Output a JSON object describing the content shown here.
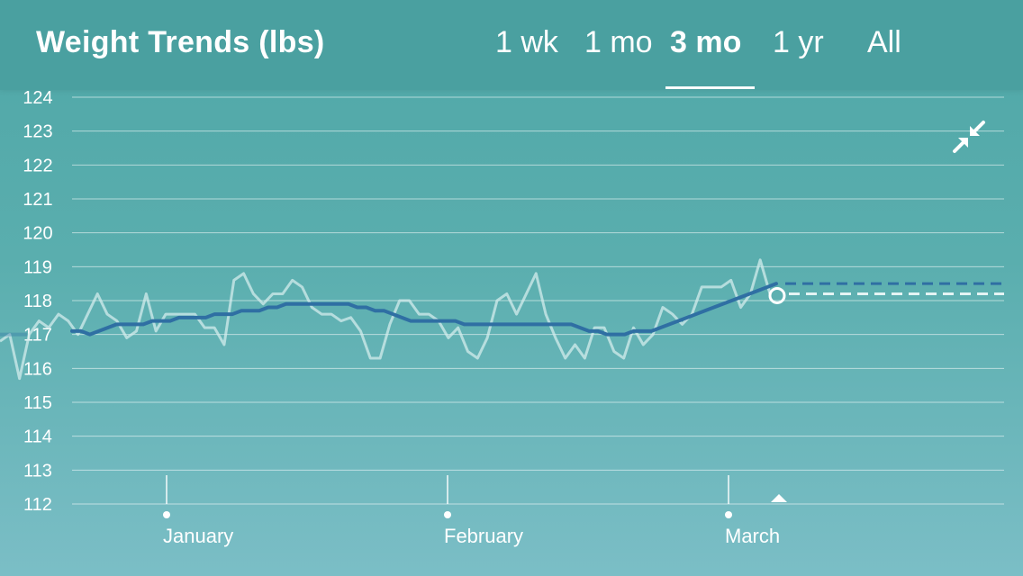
{
  "header": {
    "title": "Weight Trends (lbs)",
    "ranges": [
      {
        "label": "1 wk",
        "active": false
      },
      {
        "label": "1 mo",
        "active": false
      },
      {
        "label": "3 mo",
        "active": true
      },
      {
        "label": "1 yr",
        "active": false
      },
      {
        "label": "All",
        "active": false
      }
    ]
  },
  "icons": {
    "collapse": "collapse-arrows-icon",
    "marker": "triangle-marker-icon"
  },
  "colors": {
    "background": "#55abab",
    "header": "#4aa0a0",
    "trend_line": "#2f6fa3",
    "raw_line": "#d3ecec"
  },
  "chart_data": {
    "type": "line",
    "ylabel": "",
    "xlabel": "",
    "ylim": [
      112,
      124
    ],
    "y_ticks": [
      "124",
      "123",
      "122",
      "121",
      "120",
      "119",
      "118",
      "117",
      "116",
      "115",
      "114",
      "113",
      "112"
    ],
    "x_labels": [
      "January",
      "February",
      "March"
    ],
    "grid": true,
    "series": [
      {
        "key": "raw",
        "values": [
          116.8,
          117.0,
          115.7,
          117.0,
          117.4,
          117.2,
          117.6,
          117.4,
          117.0,
          117.6,
          118.2,
          117.6,
          117.4,
          116.9,
          117.1,
          118.2,
          117.1,
          117.6,
          117.6,
          117.6,
          117.6,
          117.2,
          117.2,
          116.7,
          118.6,
          118.8,
          118.2,
          117.9,
          118.2,
          118.2,
          118.6,
          118.4,
          117.8,
          117.6,
          117.6,
          117.4,
          117.5,
          117.1,
          116.3,
          116.3,
          117.3,
          118.0,
          118.0,
          117.6,
          117.6,
          117.4,
          116.9,
          117.2,
          116.5,
          116.3,
          116.9,
          118.0,
          118.2,
          117.6,
          118.2,
          118.8,
          117.6,
          116.9,
          116.3,
          116.7,
          116.3,
          117.2,
          117.2,
          116.5,
          116.3,
          117.2,
          116.7,
          117.0,
          117.8,
          117.6,
          117.3,
          117.6,
          118.4,
          118.4,
          118.4,
          118.6,
          117.8,
          118.2,
          119.2,
          118.2
        ]
      },
      {
        "key": "trend",
        "values": [
          117.1,
          117.1,
          117.0,
          117.1,
          117.2,
          117.3,
          117.3,
          117.3,
          117.3,
          117.4,
          117.4,
          117.4,
          117.5,
          117.5,
          117.5,
          117.5,
          117.6,
          117.6,
          117.6,
          117.7,
          117.7,
          117.7,
          117.8,
          117.8,
          117.9,
          117.9,
          117.9,
          117.9,
          117.9,
          117.9,
          117.9,
          117.9,
          117.8,
          117.8,
          117.7,
          117.7,
          117.6,
          117.5,
          117.4,
          117.4,
          117.4,
          117.4,
          117.4,
          117.4,
          117.3,
          117.3,
          117.3,
          117.3,
          117.3,
          117.3,
          117.3,
          117.3,
          117.3,
          117.3,
          117.3,
          117.3,
          117.3,
          117.2,
          117.1,
          117.1,
          117.0,
          117.0,
          117.0,
          117.1,
          117.1,
          117.1,
          117.2,
          117.3,
          117.4,
          117.5,
          117.6,
          117.7,
          117.8,
          117.9,
          118.0,
          118.1,
          118.2,
          118.3,
          118.4,
          118.5
        ]
      }
    ],
    "projection": {
      "trend": 118.5,
      "raw": 118.2
    }
  }
}
